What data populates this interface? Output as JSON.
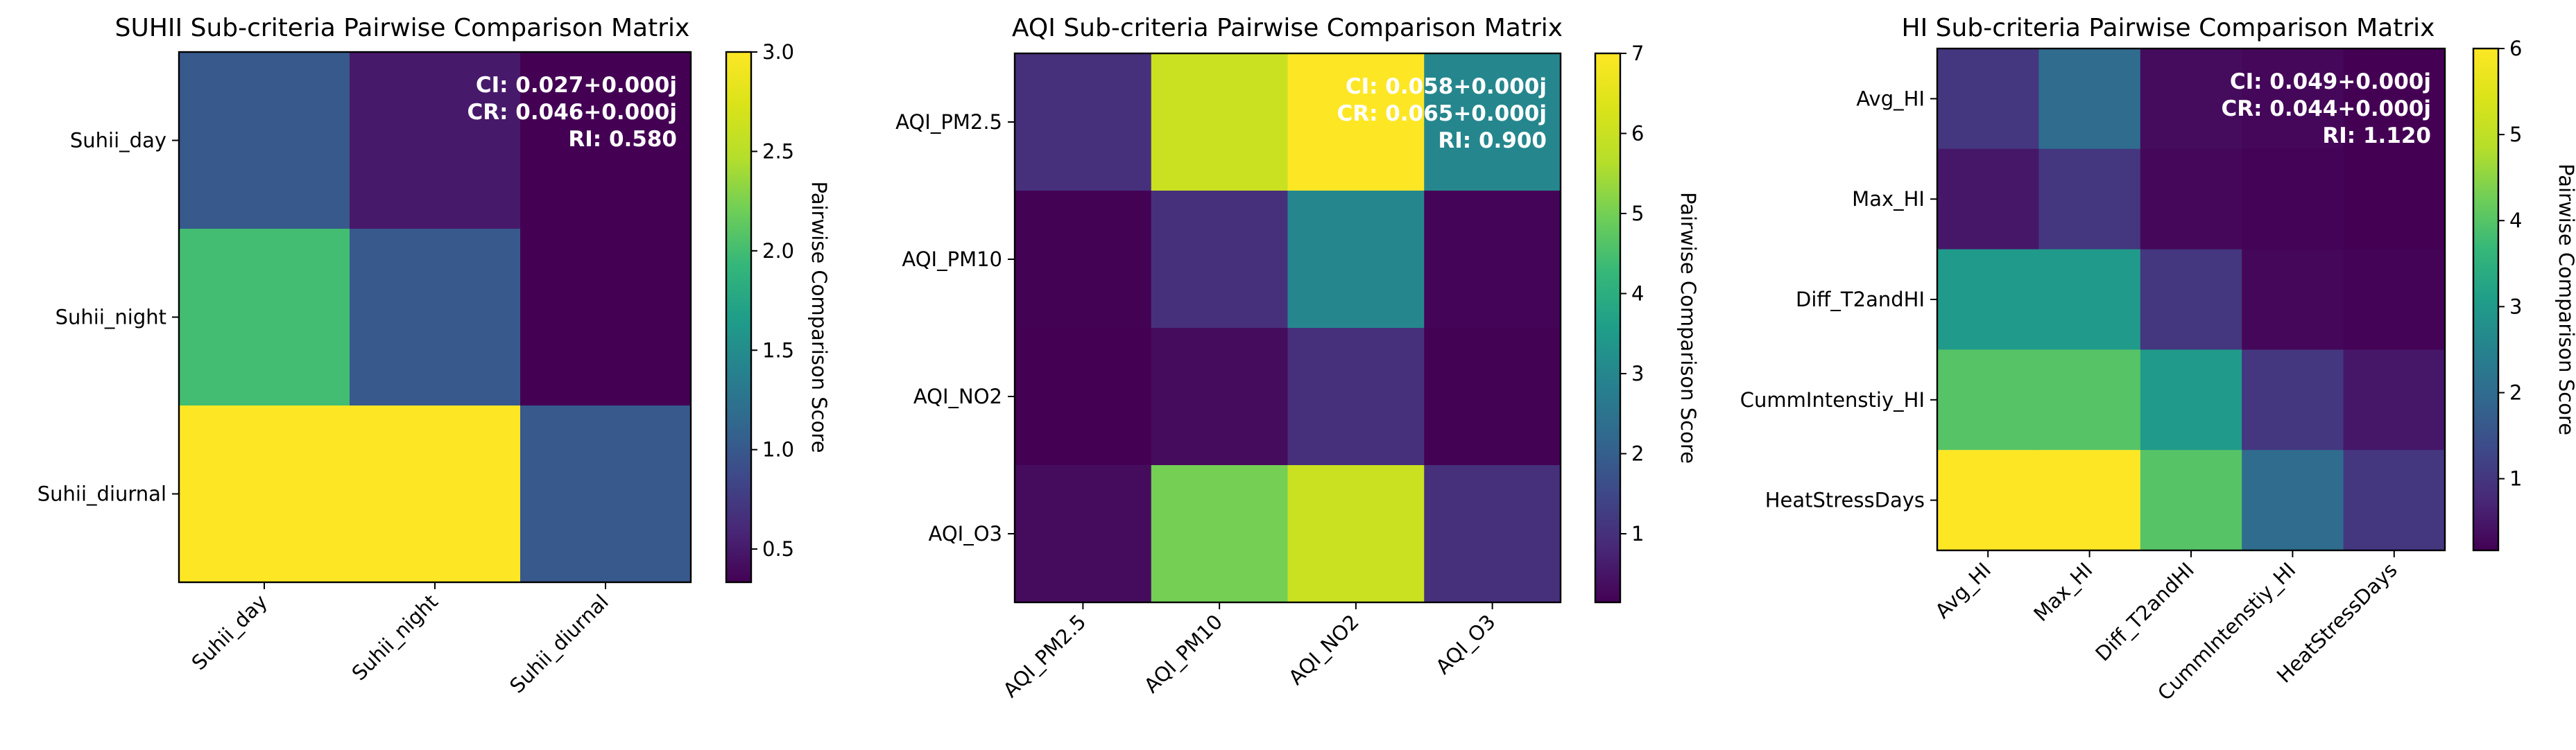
{
  "chart_data": [
    {
      "type": "heatmap",
      "title": "SUHII Sub-criteria Pairwise Comparison Matrix",
      "rows": [
        "Suhii_day",
        "Suhii_night",
        "Suhii_diurnal"
      ],
      "cols": [
        "Suhii_day",
        "Suhii_night",
        "Suhii_diurnal"
      ],
      "matrix": [
        [
          1,
          0.5,
          0.333
        ],
        [
          2,
          1,
          0.333
        ],
        [
          3,
          3,
          1
        ]
      ],
      "vmin": 0.333,
      "vmax": 3,
      "colorbar_label": "Pairwise Comparison Score",
      "colorbar_ticks": [
        "0.5",
        "1.0",
        "1.5",
        "2.0",
        "2.5",
        "3.0"
      ],
      "colorbar_tick_values": [
        0.5,
        1.0,
        1.5,
        2.0,
        2.5,
        3.0
      ],
      "annotations": [
        "CI: 0.027+0.000j",
        "CR: 0.046+0.000j",
        "RI: 0.580"
      ],
      "colormap": "viridis"
    },
    {
      "type": "heatmap",
      "title": "AQI Sub-criteria Pairwise Comparison Matrix",
      "rows": [
        "AQI_PM2.5",
        "AQI_PM10",
        "AQI_NO2",
        "AQI_O3"
      ],
      "cols": [
        "AQI_PM2.5",
        "AQI_PM10",
        "AQI_NO2",
        "AQI_O3"
      ],
      "matrix": [
        [
          1,
          6,
          7,
          3
        ],
        [
          0.167,
          1,
          3,
          0.2
        ],
        [
          0.143,
          0.333,
          1,
          0.167
        ],
        [
          0.333,
          5,
          6,
          1
        ]
      ],
      "vmin": 0.143,
      "vmax": 7,
      "colorbar_label": "Pairwise Comparison Score",
      "colorbar_ticks": [
        "1",
        "2",
        "3",
        "4",
        "5",
        "6",
        "7"
      ],
      "colorbar_tick_values": [
        1,
        2,
        3,
        4,
        5,
        6,
        7
      ],
      "annotations": [
        "CI: 0.058+0.000j",
        "CR: 0.065+0.000j",
        "RI: 0.900"
      ],
      "colormap": "viridis"
    },
    {
      "type": "heatmap",
      "title": "HI Sub-criteria Pairwise Comparison Matrix",
      "rows": [
        "Avg_HI",
        "Max_HI",
        "Diff_T2andHI",
        "CummIntenstiy_HI",
        "HeatStressDays"
      ],
      "cols": [
        "Avg_HI",
        "Max_HI",
        "Diff_T2andHI",
        "CummIntenstiy_HI",
        "HeatStressDays"
      ],
      "matrix": [
        [
          1,
          2,
          0.333,
          0.25,
          0.167
        ],
        [
          0.5,
          1,
          0.25,
          0.2,
          0.167
        ],
        [
          3,
          3,
          1,
          0.25,
          0.2
        ],
        [
          4,
          4,
          3,
          1,
          0.5
        ],
        [
          6,
          6,
          4,
          2,
          1
        ]
      ],
      "vmin": 0.167,
      "vmax": 6,
      "colorbar_label": "Pairwise Comparison Score",
      "colorbar_ticks": [
        "1",
        "2",
        "3",
        "4",
        "5",
        "6"
      ],
      "colorbar_tick_values": [
        1,
        2,
        3,
        4,
        5,
        6
      ],
      "annotations": [
        "CI: 0.049+0.000j",
        "CR: 0.044+0.000j",
        "RI: 1.120"
      ],
      "colormap": "viridis"
    }
  ]
}
